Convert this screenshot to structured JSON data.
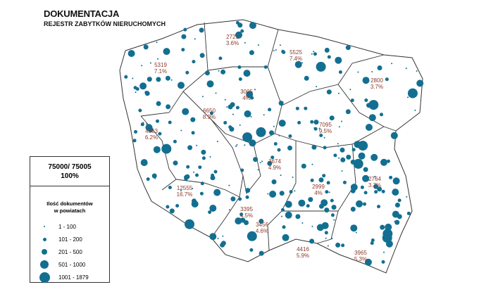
{
  "title": "DOKUMENTACJA",
  "subtitle": "REJESTR  ZABYTKÓW NIERUCHOMYCH",
  "legend": {
    "total": "75000/ 75005",
    "total_percent": "100%",
    "heading_line1": "Ilość dokumentów",
    "heading_line2": "w powiatach",
    "classes": [
      "1 - 100",
      "101 - 200",
      "201 - 500",
      "501 - 1000",
      "1001 - 1879"
    ]
  },
  "colors": {
    "dot": "#136f91",
    "label": "#8b3a2a",
    "border": "#333333",
    "district_border": "#bbbbbb"
  },
  "regions": [
    {
      "count": "2721",
      "percent": "3.6%"
    },
    {
      "count": "5525",
      "percent": "7.4%"
    },
    {
      "count": "5319",
      "percent": "7.1%"
    },
    {
      "count": "2800",
      "percent": "3.7%"
    },
    {
      "count": "3005",
      "percent": "4%"
    },
    {
      "count": "7095",
      "percent": "9.5%"
    },
    {
      "count": "4663",
      "percent": "6.2%"
    },
    {
      "count": "6650",
      "percent": "8.9%"
    },
    {
      "count": "3674",
      "percent": "4.9%"
    },
    {
      "count": "2764",
      "percent": "3.7%"
    },
    {
      "count": "12555",
      "percent": "16.7%"
    },
    {
      "count": "2999",
      "percent": "4%"
    },
    {
      "count": "3395",
      "percent": "4.5%"
    },
    {
      "count": "3456",
      "percent": "4.6%"
    },
    {
      "count": "4416",
      "percent": "5.9%"
    },
    {
      "count": "3965",
      "percent": "5.3%"
    }
  ]
}
